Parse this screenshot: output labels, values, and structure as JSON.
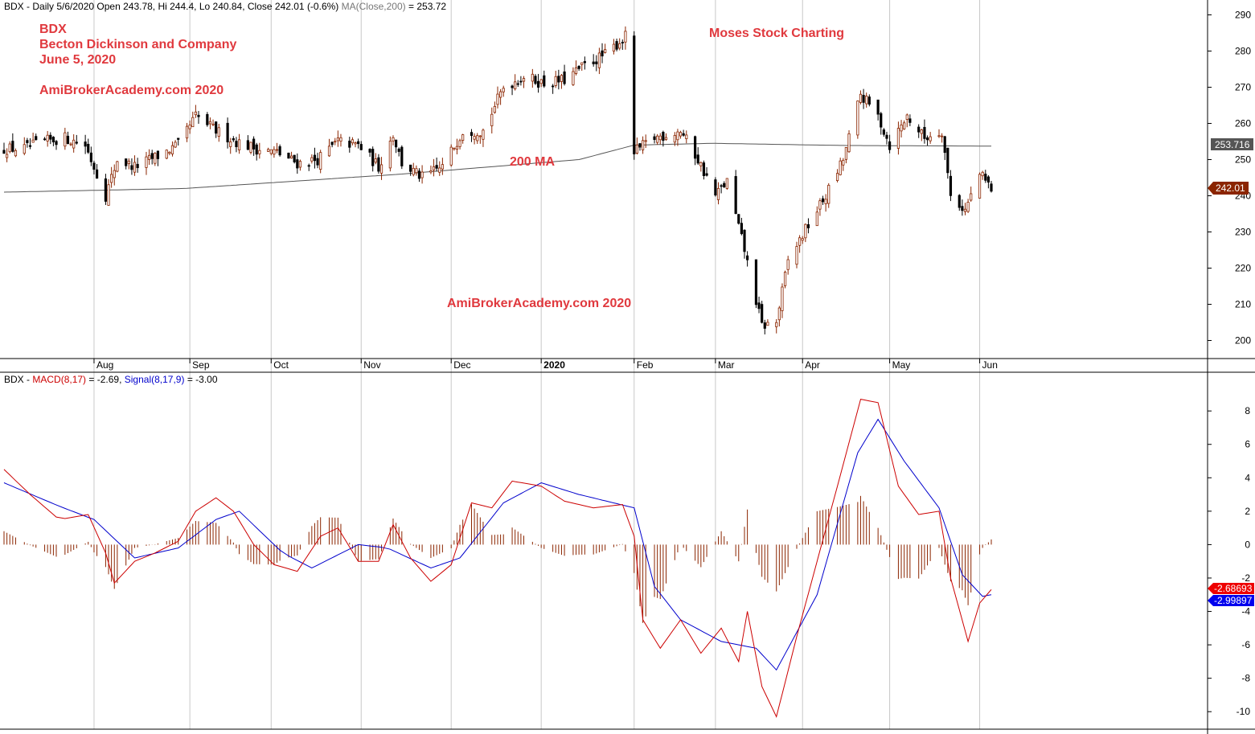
{
  "colors": {
    "background": "#ffffff",
    "bull": "#8b2500",
    "bear": "#000000",
    "ma_line": "#555555",
    "macd_line": "#cc0000",
    "signal_line": "#0000cc",
    "histogram": "#8b2500",
    "annotation": "#e0393e",
    "price_tag": "#8b2500",
    "ma_tag": "#555555"
  },
  "chart_data": [
    {
      "type": "candlestick",
      "header": {
        "symbol": "BDX",
        "info": "Daily 5/6/2020 Open 243.78, Hi 244.4, Lo 240.84, Close 242.01 (-0.6%)",
        "ma_label": "MA(Close,200)",
        "ma_value": "= 253.72"
      },
      "annotations": {
        "symbol": "BDX",
        "company": "Becton Dickinson and Company",
        "date": "June 5, 2020",
        "site_top": "AmiBrokerAcademy.com  2020",
        "site_mid": "AmiBrokerAcademy.com  2020",
        "moses": "Moses Stock Charting",
        "ma": "200 MA"
      },
      "y_ticks": [
        "200",
        "210",
        "220",
        "230",
        "240",
        "250",
        "260",
        "270",
        "280",
        "290"
      ],
      "ylim": [
        195,
        293
      ],
      "x_months": [
        {
          "label": "Aug",
          "date": "2019-08-01"
        },
        {
          "label": "Sep",
          "date": "2019-09-03"
        },
        {
          "label": "Oct",
          "date": "2019-10-01"
        },
        {
          "label": "Nov",
          "date": "2019-11-01"
        },
        {
          "label": "Dec",
          "date": "2019-12-02"
        },
        {
          "label": "2020",
          "date": "2020-01-02"
        },
        {
          "label": "Feb",
          "date": "2020-02-03"
        },
        {
          "label": "Mar",
          "date": "2020-03-02"
        },
        {
          "label": "Apr",
          "date": "2020-04-01"
        },
        {
          "label": "May",
          "date": "2020-05-01"
        },
        {
          "label": "Jun",
          "date": "2020-06-01"
        }
      ],
      "x_range": [
        "2019-07-01",
        "2020-06-05"
      ],
      "close_key": [
        [
          "2019-07-01",
          253
        ],
        [
          "2019-07-08",
          253
        ],
        [
          "2019-07-15",
          255
        ],
        [
          "2019-07-22",
          256
        ],
        [
          "2019-07-29",
          254
        ],
        [
          "2019-08-05",
          240
        ],
        [
          "2019-08-09",
          250
        ],
        [
          "2019-08-15",
          248
        ],
        [
          "2019-08-23",
          251
        ],
        [
          "2019-08-30",
          254
        ],
        [
          "2019-09-05",
          262
        ],
        [
          "2019-09-12",
          258
        ],
        [
          "2019-09-19",
          255
        ],
        [
          "2019-09-26",
          253
        ],
        [
          "2019-10-03",
          252
        ],
        [
          "2019-10-10",
          249
        ],
        [
          "2019-10-17",
          250
        ],
        [
          "2019-10-24",
          255
        ],
        [
          "2019-10-31",
          254
        ],
        [
          "2019-11-07",
          248
        ],
        [
          "2019-11-12",
          257
        ],
        [
          "2019-11-15",
          249
        ],
        [
          "2019-11-22",
          245
        ],
        [
          "2019-11-29",
          248
        ],
        [
          "2019-12-06",
          258
        ],
        [
          "2019-12-13",
          258
        ],
        [
          "2019-12-20",
          270
        ],
        [
          "2019-12-27",
          273
        ],
        [
          "2020-01-03",
          271
        ],
        [
          "2020-01-10",
          272
        ],
        [
          "2020-01-17",
          276
        ],
        [
          "2020-01-24",
          279
        ],
        [
          "2020-01-31",
          284
        ],
        [
          "2020-02-03",
          252
        ],
        [
          "2020-02-10",
          256
        ],
        [
          "2020-02-19",
          258
        ],
        [
          "2020-02-25",
          250
        ],
        [
          "2020-03-02",
          240
        ],
        [
          "2020-03-06",
          244
        ],
        [
          "2020-03-12",
          225
        ],
        [
          "2020-03-18",
          204
        ],
        [
          "2020-03-23",
          205
        ],
        [
          "2020-03-27",
          222
        ],
        [
          "2020-04-03",
          232
        ],
        [
          "2020-04-09",
          240
        ],
        [
          "2020-04-15",
          250
        ],
        [
          "2020-04-21",
          268
        ],
        [
          "2020-04-27",
          262
        ],
        [
          "2020-05-01",
          254
        ],
        [
          "2020-05-07",
          262
        ],
        [
          "2020-05-13",
          256
        ],
        [
          "2020-05-19",
          258
        ],
        [
          "2020-05-22",
          240
        ],
        [
          "2020-05-27",
          236
        ],
        [
          "2020-06-01",
          246
        ],
        [
          "2020-06-05",
          242.01
        ]
      ],
      "ma_key": [
        [
          "2019-07-01",
          241
        ],
        [
          "2019-09-01",
          242
        ],
        [
          "2019-11-15",
          246
        ],
        [
          "2020-01-15",
          250
        ],
        [
          "2020-02-03",
          254
        ],
        [
          "2020-03-01",
          254.5
        ],
        [
          "2020-04-15",
          253.9
        ],
        [
          "2020-06-05",
          253.72
        ]
      ],
      "last_close_tag": "242.01",
      "ma_tag": "253.716"
    },
    {
      "type": "line",
      "header": {
        "symbol": "BDX",
        "macd_label": "MACD(8,17)",
        "macd_value": "= -2.69,",
        "signal_label": "Signal(8,17,9)",
        "signal_value": "= -3.00"
      },
      "y_ticks": [
        "-10",
        "-8",
        "-6",
        "-4",
        "-2",
        "0",
        "2",
        "4",
        "6",
        "8"
      ],
      "ylim": [
        -11,
        9.5
      ],
      "macd_key": [
        [
          "2019-07-01",
          4.5
        ],
        [
          "2019-07-10",
          3.0
        ],
        [
          "2019-07-20",
          1.5
        ],
        [
          "2019-07-30",
          1.8
        ],
        [
          "2019-08-05",
          -0.5
        ],
        [
          "2019-08-08",
          -2.3
        ],
        [
          "2019-08-15",
          -1.0
        ],
        [
          "2019-08-22",
          -0.5
        ],
        [
          "2019-08-30",
          0.2
        ],
        [
          "2019-09-05",
          2.0
        ],
        [
          "2019-09-12",
          2.8
        ],
        [
          "2019-09-18",
          2.0
        ],
        [
          "2019-09-25",
          0.0
        ],
        [
          "2019-10-02",
          -1.2
        ],
        [
          "2019-10-10",
          -1.6
        ],
        [
          "2019-10-18",
          0.5
        ],
        [
          "2019-10-24",
          1.0
        ],
        [
          "2019-10-31",
          -1.0
        ],
        [
          "2019-11-07",
          -1.0
        ],
        [
          "2019-11-12",
          1.2
        ],
        [
          "2019-11-18",
          -0.8
        ],
        [
          "2019-11-25",
          -2.2
        ],
        [
          "2019-12-02",
          -1.2
        ],
        [
          "2019-12-09",
          2.5
        ],
        [
          "2019-12-16",
          2.2
        ],
        [
          "2019-12-23",
          3.8
        ],
        [
          "2020-01-02",
          3.5
        ],
        [
          "2020-01-10",
          2.6
        ],
        [
          "2020-01-20",
          2.2
        ],
        [
          "2020-01-30",
          2.4
        ],
        [
          "2020-02-03",
          0.5
        ],
        [
          "2020-02-06",
          -4.5
        ],
        [
          "2020-02-12",
          -6.2
        ],
        [
          "2020-02-19",
          -4.5
        ],
        [
          "2020-02-26",
          -6.5
        ],
        [
          "2020-03-04",
          -5.0
        ],
        [
          "2020-03-10",
          -7.0
        ],
        [
          "2020-03-13",
          -4.0
        ],
        [
          "2020-03-18",
          -8.5
        ],
        [
          "2020-03-23",
          -10.3
        ],
        [
          "2020-03-30",
          -5.5
        ],
        [
          "2020-04-06",
          -1.0
        ],
        [
          "2020-04-13",
          3.5
        ],
        [
          "2020-04-21",
          8.7
        ],
        [
          "2020-04-27",
          8.5
        ],
        [
          "2020-05-04",
          3.5
        ],
        [
          "2020-05-11",
          1.8
        ],
        [
          "2020-05-18",
          2.0
        ],
        [
          "2020-05-22",
          -2.0
        ],
        [
          "2020-05-28",
          -5.8
        ],
        [
          "2020-06-01",
          -3.5
        ],
        [
          "2020-06-05",
          -2.69
        ]
      ],
      "signal_key": [
        [
          "2019-07-01",
          3.7
        ],
        [
          "2019-07-20",
          2.3
        ],
        [
          "2019-08-01",
          1.5
        ],
        [
          "2019-08-15",
          -0.8
        ],
        [
          "2019-08-30",
          -0.2
        ],
        [
          "2019-09-12",
          1.5
        ],
        [
          "2019-09-20",
          2.0
        ],
        [
          "2019-10-05",
          -0.5
        ],
        [
          "2019-10-15",
          -1.4
        ],
        [
          "2019-10-31",
          0.0
        ],
        [
          "2019-11-10",
          -0.2
        ],
        [
          "2019-11-25",
          -1.4
        ],
        [
          "2019-12-05",
          -0.8
        ],
        [
          "2019-12-20",
          2.5
        ],
        [
          "2020-01-02",
          3.7
        ],
        [
          "2020-01-15",
          3.0
        ],
        [
          "2020-02-03",
          2.2
        ],
        [
          "2020-02-10",
          -2.5
        ],
        [
          "2020-02-19",
          -4.5
        ],
        [
          "2020-03-04",
          -5.8
        ],
        [
          "2020-03-16",
          -6.2
        ],
        [
          "2020-03-23",
          -7.5
        ],
        [
          "2020-04-06",
          -3.0
        ],
        [
          "2020-04-20",
          5.5
        ],
        [
          "2020-04-27",
          7.5
        ],
        [
          "2020-05-06",
          5.0
        ],
        [
          "2020-05-18",
          2.2
        ],
        [
          "2020-05-26",
          -1.8
        ],
        [
          "2020-06-02",
          -3.1
        ],
        [
          "2020-06-05",
          -3.0
        ]
      ],
      "macd_tag": "-2.68693",
      "signal_tag": "-2.99897"
    }
  ]
}
